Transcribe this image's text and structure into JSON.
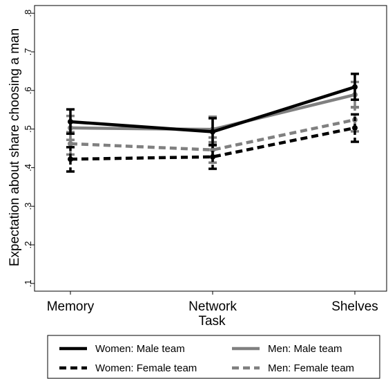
{
  "chart_data": {
    "type": "line",
    "title": "",
    "xlabel": "Task",
    "ylabel": "Expectation about share choosing a man",
    "categories": [
      "Memory",
      "Network",
      "Shelves"
    ],
    "ylim": [
      0.08,
      0.82
    ],
    "yticks": [
      0.1,
      0.2,
      0.3,
      0.4,
      0.5,
      0.6,
      0.7,
      0.8
    ],
    "ytick_labels": [
      ".1",
      ".2",
      ".3",
      ".4",
      ".5",
      ".6",
      ".7",
      ".8"
    ],
    "grid": false,
    "legend_position": "bottom",
    "series": [
      {
        "name": "Women: Male team",
        "values": [
          0.519,
          0.493,
          0.609
        ],
        "ci_low": [
          0.488,
          0.458,
          0.576
        ],
        "ci_high": [
          0.551,
          0.528,
          0.643
        ],
        "color": "#000000",
        "dash": "solid"
      },
      {
        "name": "Men: Male team",
        "values": [
          0.503,
          0.499,
          0.589
        ],
        "ci_low": [
          0.472,
          0.466,
          0.556
        ],
        "ci_high": [
          0.534,
          0.532,
          0.622
        ],
        "color": "#808080",
        "dash": "solid"
      },
      {
        "name": "Women: Female team",
        "values": [
          0.422,
          0.428,
          0.503
        ],
        "ci_low": [
          0.39,
          0.397,
          0.467
        ],
        "ci_high": [
          0.453,
          0.459,
          0.538
        ],
        "color": "#000000",
        "dash": "dashed"
      },
      {
        "name": "Men: Female team",
        "values": [
          0.462,
          0.446,
          0.524
        ],
        "ci_low": [
          0.434,
          0.413,
          0.494
        ],
        "ci_high": [
          0.492,
          0.478,
          0.557
        ],
        "color": "#808080",
        "dash": "dashed"
      }
    ]
  }
}
